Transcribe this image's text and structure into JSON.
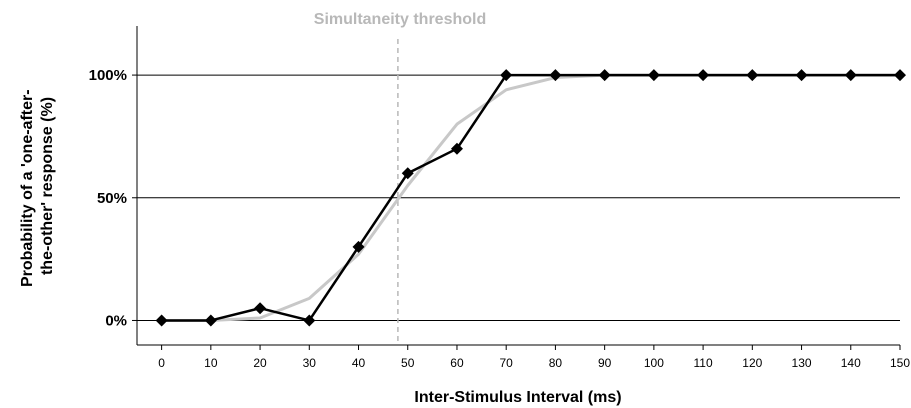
{
  "chart_data": {
    "type": "line",
    "xlabel": "Inter-Stimulus Interval (ms)",
    "ylabel_lines": [
      "Probability of a 'one-after-",
      "the-other' response (%)"
    ],
    "x": [
      0,
      10,
      20,
      30,
      40,
      50,
      60,
      70,
      80,
      90,
      100,
      110,
      120,
      130,
      140,
      150
    ],
    "xlim": [
      -5,
      150
    ],
    "ylim": [
      -0.1,
      1.2
    ],
    "yticks": [
      0,
      0.5,
      1.0
    ],
    "ytick_labels": [
      "0%",
      "50%",
      "100%"
    ],
    "grid": "horizontal",
    "series": [
      {
        "style": "observed",
        "color": "#000000",
        "marker": "diamond",
        "values": [
          0,
          0,
          0.05,
          0,
          0.3,
          0.6,
          0.7,
          1.0,
          1.0,
          1.0,
          1.0,
          1.0,
          1.0,
          1.0,
          1.0,
          1.0
        ]
      },
      {
        "style": "fit",
        "color": "#c8c8c8",
        "marker": "none",
        "x": [
          0,
          10,
          20,
          30,
          40,
          50,
          60,
          70,
          80,
          90,
          100,
          110,
          120,
          130,
          140,
          150
        ],
        "values": [
          0,
          0,
          0.01,
          0.09,
          0.27,
          0.55,
          0.8,
          0.94,
          0.99,
          1.0,
          1.0,
          1.0,
          1.0,
          1.0,
          1.0,
          1.0
        ]
      }
    ],
    "annotations": [
      {
        "text": "Simultaneity threshold",
        "x": 48,
        "style": "dashed-vertical",
        "color": "#b8b8b8"
      }
    ]
  }
}
